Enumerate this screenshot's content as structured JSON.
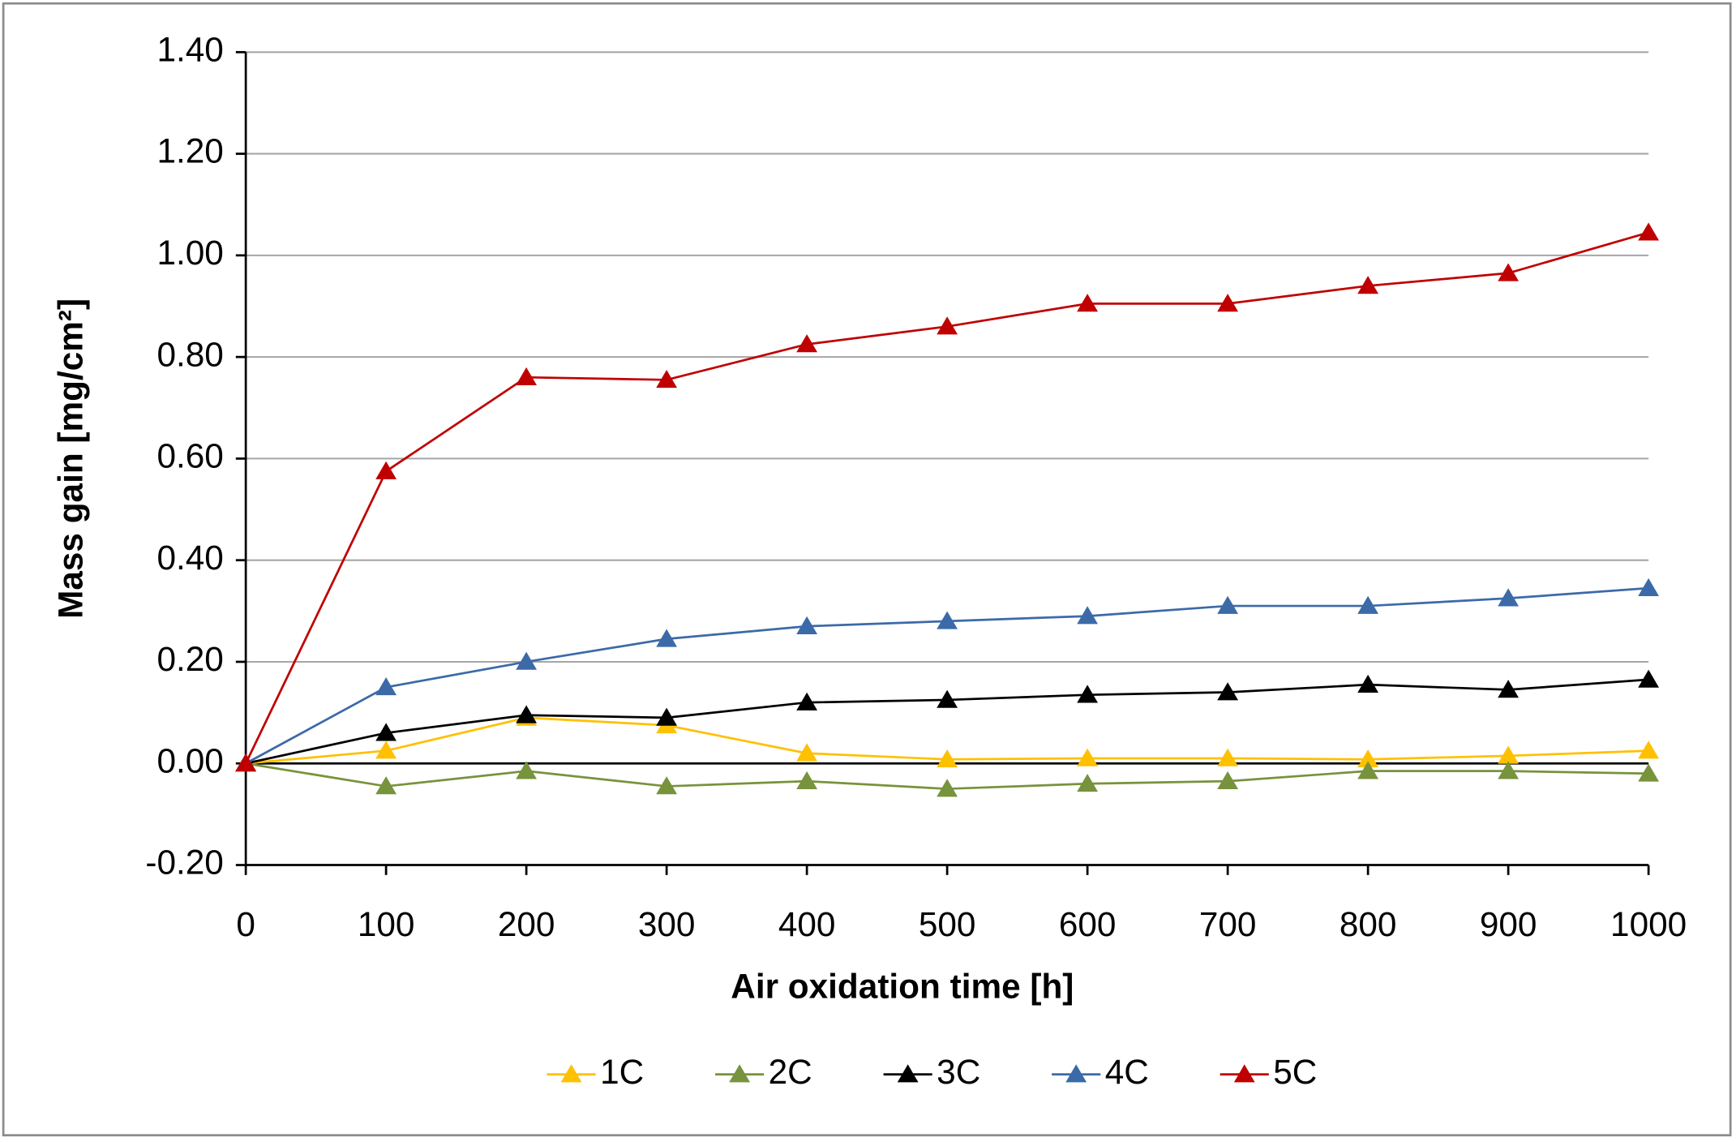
{
  "chart_data": {
    "type": "line",
    "x_label": "Air oxidation time [h]",
    "y_label": "Mass gain [mg/cm²]",
    "x": [
      0,
      100,
      200,
      300,
      400,
      500,
      600,
      700,
      800,
      900,
      1000
    ],
    "xlim": [
      0,
      1000
    ],
    "xticks": [
      0,
      100,
      200,
      300,
      400,
      500,
      600,
      700,
      800,
      900,
      1000
    ],
    "ylim": [
      -0.2,
      1.4
    ],
    "yticks": [
      {
        "value": -0.2,
        "label": "-0.20"
      },
      {
        "value": 0,
        "label": "0.00"
      },
      {
        "value": 0.2,
        "label": "0.20"
      },
      {
        "value": 0.4,
        "label": "0.40"
      },
      {
        "value": 0.6,
        "label": "0.60"
      },
      {
        "value": 0.8,
        "label": "0.80"
      },
      {
        "value": 1.0,
        "label": "1.00"
      },
      {
        "value": 1.2,
        "label": "1.20"
      },
      {
        "value": 1.4,
        "label": "1.40"
      }
    ],
    "grid": true,
    "legend": "bottom",
    "series": [
      {
        "name": "1C",
        "color": "#ffc000",
        "values": [
          0,
          0.025,
          0.09,
          0.075,
          0.02,
          0.008,
          0.01,
          0.01,
          0.008,
          0.015,
          0.025
        ]
      },
      {
        "name": "2C",
        "color": "#77933c",
        "values": [
          0,
          -0.045,
          -0.015,
          -0.045,
          -0.035,
          -0.05,
          -0.04,
          -0.035,
          -0.015,
          -0.015,
          -0.02
        ]
      },
      {
        "name": "3C",
        "color": "#000000",
        "values": [
          0,
          0.06,
          0.095,
          0.09,
          0.12,
          0.125,
          0.135,
          0.14,
          0.155,
          0.145,
          0.165
        ]
      },
      {
        "name": "4C",
        "color": "#3c6aa8",
        "values": [
          0,
          0.15,
          0.2,
          0.245,
          0.27,
          0.28,
          0.29,
          0.31,
          0.31,
          0.325,
          0.345
        ]
      },
      {
        "name": "5C",
        "color": "#c00000",
        "values": [
          0,
          0.575,
          0.76,
          0.755,
          0.825,
          0.86,
          0.905,
          0.905,
          0.94,
          0.965,
          1.045
        ]
      }
    ]
  }
}
